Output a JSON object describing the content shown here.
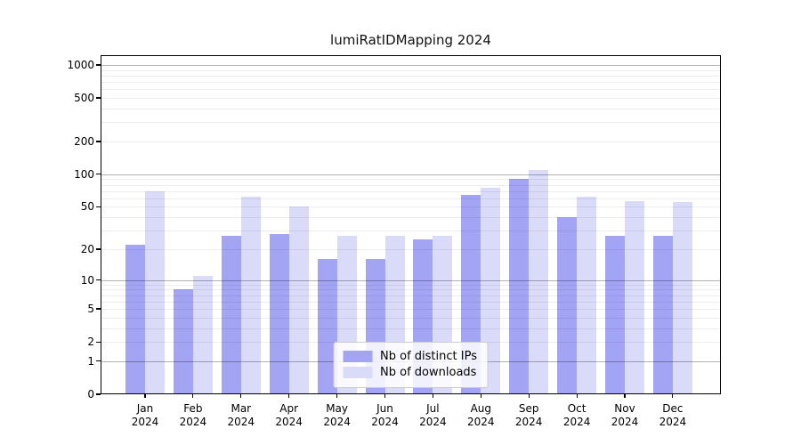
{
  "title": "lumiRatIDMapping 2024",
  "chart_data": {
    "type": "bar",
    "title": "lumiRatIDMapping 2024",
    "categories": [
      "Jan\n2024",
      "Feb\n2024",
      "Mar\n2024",
      "Apr\n2024",
      "May\n2024",
      "Jun\n2024",
      "Jul\n2024",
      "Aug\n2024",
      "Sep\n2024",
      "Oct\n2024",
      "Nov\n2024",
      "Dec\n2024"
    ],
    "series": [
      {
        "name": "Nb of distinct IPs",
        "key": "distinct-ips",
        "color": "#a4a4f4",
        "values": [
          22,
          8,
          27,
          28,
          16,
          16,
          25,
          65,
          90,
          40,
          27,
          27
        ]
      },
      {
        "name": "Nb of downloads",
        "key": "downloads",
        "color": "#dadaf9",
        "values": [
          70,
          11,
          62,
          50,
          27,
          27,
          27,
          75,
          110,
          62,
          56,
          55
        ]
      }
    ],
    "xlabel": "",
    "ylabel": "",
    "yscale": "log1p",
    "ylim": [
      0,
      1228
    ],
    "yticks": [
      0,
      1,
      2,
      5,
      10,
      20,
      50,
      100,
      200,
      500,
      1000
    ],
    "yticks_minor": [
      2,
      3,
      4,
      5,
      6,
      7,
      8,
      9,
      20,
      30,
      40,
      50,
      60,
      70,
      80,
      90,
      200,
      300,
      400,
      500,
      600,
      700,
      800,
      900
    ],
    "grid": true,
    "legend_position": "lower center"
  }
}
